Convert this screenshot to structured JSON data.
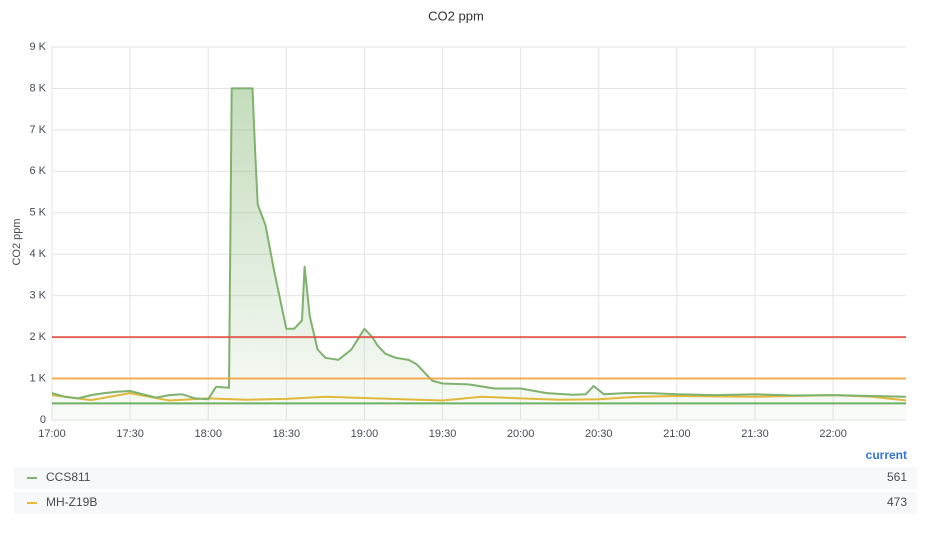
{
  "chart_data": {
    "type": "line",
    "title": "CO2 ppm",
    "y_label": "CO2 ppm",
    "xlim": [
      "17:00",
      "22:28"
    ],
    "xticks": [
      "17:00",
      "17:30",
      "18:00",
      "18:30",
      "19:00",
      "19:30",
      "20:00",
      "20:30",
      "21:00",
      "21:30",
      "22:00"
    ],
    "ylim": [
      0,
      9000
    ],
    "yticks": [
      0,
      {
        "value": 1000,
        "label": "1 K"
      },
      {
        "value": 2000,
        "label": "2 K"
      },
      {
        "value": 3000,
        "label": "3 K"
      },
      {
        "value": 4000,
        "label": "4 K"
      },
      {
        "value": 5000,
        "label": "5 K"
      },
      {
        "value": 6000,
        "label": "6 K"
      },
      {
        "value": 7000,
        "label": "7 K"
      },
      {
        "value": 8000,
        "label": "8 K"
      },
      {
        "value": 9000,
        "label": "9 K"
      }
    ],
    "grid": true,
    "thresholds": [
      {
        "value": 2000,
        "color": "#e24d42"
      },
      {
        "value": 1000,
        "color": "#f2a33a"
      },
      {
        "value": 400,
        "color": "#56a64b"
      }
    ],
    "legend": {
      "position": "bottom",
      "column": "current"
    },
    "series": [
      {
        "name": "CCS811",
        "color": "#7eb26d",
        "fill": true,
        "current": 561,
        "x": [
          "17:00",
          "17:05",
          "17:10",
          "17:15",
          "17:20",
          "17:25",
          "17:30",
          "17:35",
          "17:40",
          "17:45",
          "17:50",
          "17:55",
          "18:00",
          "18:03",
          "18:08",
          "18:09",
          "18:17",
          "18:18",
          "18:19",
          "18:22",
          "18:25",
          "18:28",
          "18:30",
          "18:33",
          "18:36",
          "18:37",
          "18:39",
          "18:42",
          "18:45",
          "18:50",
          "18:55",
          "19:00",
          "19:03",
          "19:05",
          "19:08",
          "19:12",
          "19:17",
          "19:20",
          "19:23",
          "19:26",
          "19:30",
          "19:40",
          "19:50",
          "20:00",
          "20:10",
          "20:20",
          "20:25",
          "20:28",
          "20:32",
          "20:40",
          "20:50",
          "21:00",
          "21:15",
          "21:30",
          "21:45",
          "22:00",
          "22:15",
          "22:28"
        ],
        "values": [
          650,
          560,
          520,
          600,
          650,
          680,
          700,
          620,
          540,
          600,
          620,
          520,
          500,
          800,
          780,
          8000,
          8000,
          6500,
          5200,
          4700,
          3700,
          2800,
          2200,
          2200,
          2400,
          3700,
          2500,
          1700,
          1500,
          1450,
          1700,
          2200,
          2000,
          1800,
          1600,
          1500,
          1450,
          1350,
          1150,
          950,
          880,
          860,
          760,
          760,
          650,
          610,
          620,
          820,
          620,
          650,
          650,
          620,
          600,
          620,
          590,
          600,
          580,
          561
        ]
      },
      {
        "name": "MH-Z19B",
        "color": "#eab839",
        "fill": false,
        "current": 473,
        "x": [
          "17:00",
          "17:15",
          "17:30",
          "17:45",
          "18:00",
          "18:15",
          "18:30",
          "18:45",
          "19:00",
          "19:15",
          "19:30",
          "19:45",
          "20:00",
          "20:15",
          "20:30",
          "20:45",
          "21:00",
          "21:30",
          "22:00",
          "22:15",
          "22:28"
        ],
        "values": [
          600,
          480,
          650,
          470,
          520,
          490,
          510,
          560,
          530,
          500,
          470,
          560,
          520,
          490,
          500,
          560,
          580,
          560,
          600,
          560,
          473
        ]
      }
    ]
  }
}
